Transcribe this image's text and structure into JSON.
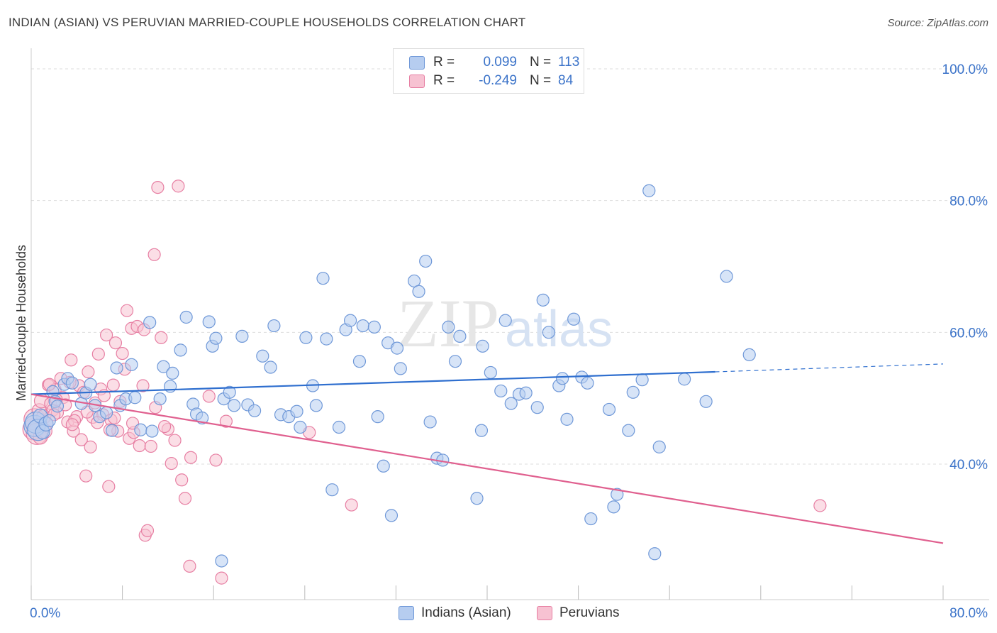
{
  "title": "INDIAN (ASIAN) VS PERUVIAN MARRIED-COUPLE HOUSEHOLDS CORRELATION CHART",
  "source": "Source: ZipAtlas.com",
  "colors": {
    "blue_fill": "#b6cdf0",
    "blue_stroke": "#6f98d8",
    "blue_line": "#2f6fcf",
    "pink_fill": "#f7c2d2",
    "pink_stroke": "#e77fa3",
    "pink_line": "#e0608f",
    "axis_label": "#3b73c9",
    "grid": "#dedede"
  },
  "legend": {
    "rows": [
      {
        "r_label": "R =",
        "r_value": "0.099",
        "n_label": "N =",
        "n_value": "113"
      },
      {
        "r_label": "R =",
        "r_value": "-0.249",
        "n_label": "N =",
        "n_value": "84"
      }
    ]
  },
  "watermark": {
    "zip": "ZIP",
    "atlas": "atlas"
  },
  "chart_data": {
    "type": "scatter",
    "ylabel": "Married-couple Households",
    "xlim": [
      0,
      80
    ],
    "ylim": [
      20,
      100
    ],
    "x_tick_labels": [
      {
        "value": 0,
        "label": "0.0%"
      },
      {
        "value": 80,
        "label": "80.0%"
      }
    ],
    "y_tick_labels": [
      {
        "value": 40,
        "label": "40.0%"
      },
      {
        "value": 60,
        "label": "60.0%"
      },
      {
        "value": 80,
        "label": "80.0%"
      },
      {
        "value": 100,
        "label": "100.0%"
      }
    ],
    "grid": "horizontal dashed",
    "legend_position": "top-center",
    "series": [
      {
        "name": "Indians (Asian)",
        "color": "#6f98d8",
        "trend": {
          "x_start": 0,
          "y_start": 50.6,
          "x_end": 60,
          "y_end": 54.0,
          "dashed_to_x": 80,
          "dashed_to_y": 55.2
        },
        "points": [
          [
            0.3,
            45.8
          ],
          [
            0.4,
            46.3
          ],
          [
            0.6,
            45.2
          ],
          [
            0.8,
            47.3
          ],
          [
            1.0,
            44.9
          ],
          [
            1.3,
            46.1
          ],
          [
            1.6,
            46.6
          ],
          [
            1.9,
            51.0
          ],
          [
            2.1,
            49.5
          ],
          [
            2.3,
            48.8
          ],
          [
            2.9,
            52.1
          ],
          [
            3.2,
            53.0
          ],
          [
            3.6,
            52.3
          ],
          [
            4.4,
            49.2
          ],
          [
            4.8,
            50.8
          ],
          [
            5.2,
            52.1
          ],
          [
            5.6,
            48.9
          ],
          [
            6.0,
            47.2
          ],
          [
            6.6,
            47.8
          ],
          [
            7.1,
            45.1
          ],
          [
            7.5,
            54.6
          ],
          [
            7.8,
            48.9
          ],
          [
            8.3,
            49.9
          ],
          [
            8.8,
            55.1
          ],
          [
            9.1,
            50.1
          ],
          [
            9.6,
            45.2
          ],
          [
            10.4,
            61.5
          ],
          [
            10.6,
            45.0
          ],
          [
            11.3,
            49.9
          ],
          [
            11.6,
            54.8
          ],
          [
            12.2,
            51.8
          ],
          [
            12.4,
            53.8
          ],
          [
            13.1,
            57.3
          ],
          [
            13.6,
            62.3
          ],
          [
            14.2,
            49.1
          ],
          [
            14.5,
            47.6
          ],
          [
            15.0,
            47.0
          ],
          [
            15.6,
            61.6
          ],
          [
            15.9,
            57.9
          ],
          [
            16.2,
            59.1
          ],
          [
            16.9,
            49.9
          ],
          [
            17.4,
            50.9
          ],
          [
            17.8,
            48.9
          ],
          [
            18.5,
            59.4
          ],
          [
            19.0,
            49.0
          ],
          [
            19.6,
            48.1
          ],
          [
            20.3,
            56.4
          ],
          [
            21.0,
            54.7
          ],
          [
            21.3,
            61.0
          ],
          [
            21.9,
            47.5
          ],
          [
            22.6,
            47.2
          ],
          [
            23.3,
            48.0
          ],
          [
            23.6,
            45.6
          ],
          [
            24.1,
            59.2
          ],
          [
            24.7,
            51.9
          ],
          [
            25.0,
            48.9
          ],
          [
            25.6,
            68.2
          ],
          [
            25.9,
            59.0
          ],
          [
            26.4,
            36.1
          ],
          [
            27.0,
            45.6
          ],
          [
            27.6,
            60.4
          ],
          [
            28.0,
            61.8
          ],
          [
            28.8,
            55.6
          ],
          [
            29.1,
            61.0
          ],
          [
            30.1,
            60.8
          ],
          [
            30.4,
            47.2
          ],
          [
            30.9,
            39.7
          ],
          [
            31.3,
            58.4
          ],
          [
            31.6,
            32.2
          ],
          [
            32.1,
            57.6
          ],
          [
            32.4,
            54.5
          ],
          [
            33.6,
            67.8
          ],
          [
            34.0,
            66.2
          ],
          [
            34.6,
            70.8
          ],
          [
            35.0,
            46.4
          ],
          [
            35.6,
            40.9
          ],
          [
            36.1,
            40.6
          ],
          [
            36.6,
            60.8
          ],
          [
            37.2,
            55.6
          ],
          [
            37.6,
            59.4
          ],
          [
            39.1,
            34.8
          ],
          [
            39.5,
            45.1
          ],
          [
            40.3,
            53.9
          ],
          [
            41.2,
            51.1
          ],
          [
            41.6,
            61.8
          ],
          [
            42.1,
            49.2
          ],
          [
            42.8,
            50.6
          ],
          [
            43.4,
            50.8
          ],
          [
            44.4,
            48.6
          ],
          [
            44.9,
            64.9
          ],
          [
            45.4,
            60.0
          ],
          [
            46.3,
            51.9
          ],
          [
            46.6,
            53.0
          ],
          [
            47.0,
            46.8
          ],
          [
            47.6,
            62.0
          ],
          [
            48.3,
            53.2
          ],
          [
            48.8,
            52.3
          ],
          [
            49.1,
            31.7
          ],
          [
            50.7,
            48.3
          ],
          [
            51.1,
            33.5
          ],
          [
            51.4,
            35.4
          ],
          [
            52.4,
            45.1
          ],
          [
            52.8,
            50.9
          ],
          [
            53.6,
            52.8
          ],
          [
            54.7,
            26.4
          ],
          [
            55.1,
            42.6
          ],
          [
            57.3,
            52.9
          ],
          [
            59.2,
            49.5
          ],
          [
            16.7,
            25.3
          ],
          [
            54.2,
            81.5
          ],
          [
            61.0,
            68.5
          ],
          [
            63.0,
            56.6
          ],
          [
            39.6,
            57.9
          ]
        ]
      },
      {
        "name": "Peruvians",
        "color": "#e77fa3",
        "trend": {
          "x_start": 0,
          "y_start": 50.6,
          "x_end": 80,
          "y_end": 28.0
        },
        "points": [
          [
            0.2,
            45.3
          ],
          [
            0.3,
            46.8
          ],
          [
            0.5,
            44.6
          ],
          [
            0.7,
            48.1
          ],
          [
            0.9,
            49.6
          ],
          [
            1.1,
            47.2
          ],
          [
            1.3,
            46.1
          ],
          [
            1.5,
            52.0
          ],
          [
            1.7,
            49.2
          ],
          [
            1.9,
            48.2
          ],
          [
            2.1,
            51.3
          ],
          [
            2.3,
            47.8
          ],
          [
            2.6,
            53.0
          ],
          [
            2.8,
            50.1
          ],
          [
            3.0,
            49.0
          ],
          [
            3.2,
            46.4
          ],
          [
            3.5,
            55.8
          ],
          [
            3.7,
            45.0
          ],
          [
            4.0,
            47.2
          ],
          [
            4.2,
            51.9
          ],
          [
            4.4,
            43.7
          ],
          [
            4.6,
            50.9
          ],
          [
            4.8,
            38.2
          ],
          [
            5.0,
            54.0
          ],
          [
            5.2,
            42.6
          ],
          [
            5.4,
            47.1
          ],
          [
            5.6,
            49.3
          ],
          [
            5.9,
            56.7
          ],
          [
            6.1,
            51.4
          ],
          [
            6.3,
            47.5
          ],
          [
            6.6,
            59.6
          ],
          [
            6.8,
            36.6
          ],
          [
            7.0,
            46.7
          ],
          [
            7.2,
            52.0
          ],
          [
            7.4,
            58.4
          ],
          [
            7.6,
            45.0
          ],
          [
            7.8,
            49.5
          ],
          [
            8.0,
            56.8
          ],
          [
            8.2,
            54.4
          ],
          [
            8.4,
            63.3
          ],
          [
            8.6,
            43.9
          ],
          [
            8.8,
            60.6
          ],
          [
            9.0,
            44.8
          ],
          [
            9.3,
            60.9
          ],
          [
            9.5,
            42.8
          ],
          [
            9.8,
            51.9
          ],
          [
            10.0,
            29.2
          ],
          [
            10.2,
            29.9
          ],
          [
            10.5,
            42.7
          ],
          [
            10.8,
            71.8
          ],
          [
            11.1,
            82.0
          ],
          [
            11.4,
            59.2
          ],
          [
            12.0,
            45.3
          ],
          [
            12.3,
            40.1
          ],
          [
            12.6,
            43.6
          ],
          [
            12.9,
            82.2
          ],
          [
            13.2,
            37.6
          ],
          [
            13.5,
            34.8
          ],
          [
            14.0,
            41.0
          ],
          [
            15.6,
            50.3
          ],
          [
            16.7,
            22.7
          ],
          [
            16.2,
            40.6
          ],
          [
            17.1,
            46.5
          ],
          [
            13.9,
            24.5
          ],
          [
            24.4,
            44.8
          ],
          [
            28.1,
            33.8
          ],
          [
            2.2,
            49.8
          ],
          [
            3.8,
            46.6
          ],
          [
            6.4,
            50.4
          ],
          [
            9.9,
            60.4
          ],
          [
            10.9,
            48.6
          ],
          [
            11.7,
            45.7
          ],
          [
            0.8,
            44.1
          ],
          [
            1.2,
            45.0
          ],
          [
            2.0,
            47.5
          ],
          [
            3.6,
            46.0
          ],
          [
            4.9,
            47.9
          ],
          [
            5.8,
            46.3
          ],
          [
            7.3,
            47.0
          ],
          [
            8.9,
            46.2
          ],
          [
            1.6,
            52.1
          ],
          [
            3.4,
            52.4
          ],
          [
            6.9,
            45.2
          ],
          [
            69.2,
            33.7
          ]
        ]
      }
    ]
  }
}
